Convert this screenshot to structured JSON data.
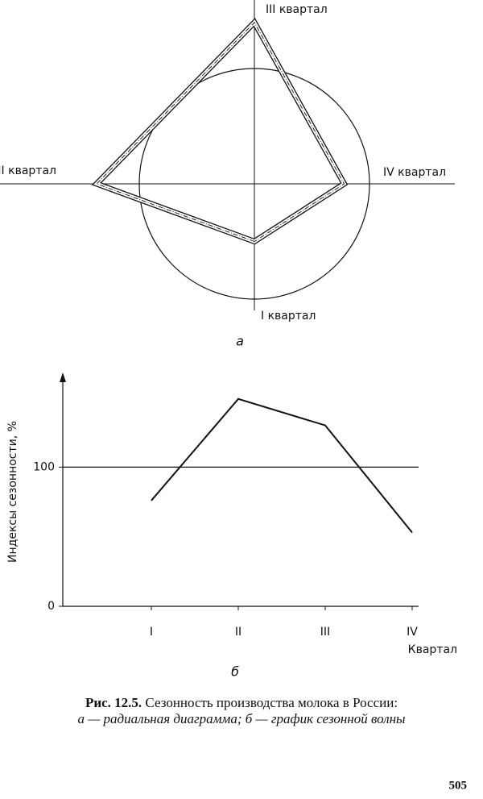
{
  "chart_data": [
    {
      "type": "radar",
      "label": "а",
      "categories": [
        "I квартал",
        "II квартал",
        "III квартал",
        "IV квартал"
      ],
      "values": [
        50,
        137,
        140,
        78
      ],
      "reference": 100,
      "color": "#111111"
    },
    {
      "type": "line",
      "label": "б",
      "categories": [
        "I",
        "II",
        "III",
        "IV"
      ],
      "values": [
        76,
        149,
        130,
        53
      ],
      "x_label": "Квартал",
      "y_label": "Индексы сезонности, %",
      "ylim": [
        0,
        168
      ],
      "yticks": [
        0,
        100
      ],
      "grid": true,
      "color": "#111111"
    }
  ],
  "caption": {
    "figure": "Рис. 12.5.",
    "line1": "Сезонность производства молока в России:",
    "line2": "а — радиальная диаграмма; б — график сезонной волны"
  },
  "page_number": "505"
}
